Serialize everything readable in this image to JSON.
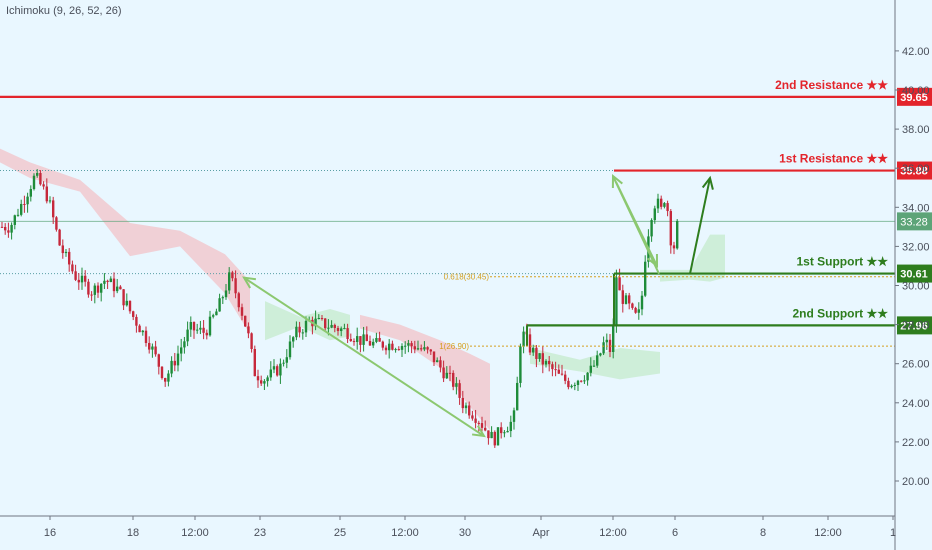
{
  "indicator_label": "Ichimoku (9, 26, 52, 26)",
  "colors": {
    "background": "#e9f7ff",
    "resistance": "#e3242b",
    "support": "#2e7d1e",
    "bull": "#1e8c3a",
    "bear": "#c6283b",
    "arrow_light": "#8cc870",
    "cloud_red": "#f1c9cf",
    "cloud_green": "#c9ecd2",
    "current_price": "#5da478",
    "fib": "#d4a020"
  },
  "chart_data": {
    "type": "candlestick",
    "ylim": [
      18.3,
      44.0
    ],
    "y_ticks": [
      "42.00",
      "40.00",
      "38.00",
      "36.00",
      "34.00",
      "32.00",
      "30.00",
      "28.00",
      "26.00",
      "24.00",
      "22.00",
      "20.00"
    ],
    "x_ticks": [
      "16",
      "18",
      "12:00",
      "23",
      "25",
      "12:00",
      "30",
      "Apr",
      "12:00",
      "6",
      "8",
      "12:00",
      "1"
    ],
    "levels": [
      {
        "label": "2nd Resistance ★★",
        "value": 39.65,
        "tag": "39.65",
        "kind": "resistance"
      },
      {
        "label": "1st Resistance ★★",
        "value": 35.88,
        "tag": "35.88",
        "kind": "resistance"
      },
      {
        "label": "1st Support ★★",
        "value": 30.61,
        "tag": "30.61",
        "kind": "support"
      },
      {
        "label": "2nd Support ★★",
        "value": 27.96,
        "tag": "27.96",
        "kind": "support"
      }
    ],
    "current_price": {
      "value": 33.28,
      "tag": "33.28"
    },
    "fibonacci": [
      {
        "label": "0.618(30.45)",
        "value": 30.45
      },
      {
        "label": "1(26.90)",
        "value": 26.9
      }
    ],
    "price_path": [
      [
        0,
        33.0
      ],
      [
        10,
        33.0
      ],
      [
        20,
        34.0
      ],
      [
        35,
        35.6
      ],
      [
        48,
        34.5
      ],
      [
        60,
        32.0
      ],
      [
        75,
        30.5
      ],
      [
        92,
        29.7
      ],
      [
        105,
        30.3
      ],
      [
        118,
        29.8
      ],
      [
        132,
        28.5
      ],
      [
        150,
        27.0
      ],
      [
        165,
        25.2
      ],
      [
        175,
        26.2
      ],
      [
        190,
        27.8
      ],
      [
        205,
        27.6
      ],
      [
        218,
        28.8
      ],
      [
        230,
        30.5
      ],
      [
        240,
        29.0
      ],
      [
        248,
        27.5
      ],
      [
        255,
        25.5
      ],
      [
        265,
        25.2
      ],
      [
        280,
        25.8
      ],
      [
        295,
        27.5
      ],
      [
        310,
        28.2
      ],
      [
        325,
        28.0
      ],
      [
        345,
        27.7
      ],
      [
        360,
        27.2
      ],
      [
        375,
        27.0
      ],
      [
        395,
        27.0
      ],
      [
        415,
        26.9
      ],
      [
        430,
        26.5
      ],
      [
        445,
        25.5
      ],
      [
        455,
        24.9
      ],
      [
        462,
        24.0
      ],
      [
        470,
        23.6
      ],
      [
        478,
        23.2
      ],
      [
        486,
        22.6
      ],
      [
        494,
        22.1
      ],
      [
        502,
        22.7
      ],
      [
        510,
        22.9
      ],
      [
        516,
        23.5
      ],
      [
        519,
        27.0
      ],
      [
        524,
        27.5
      ],
      [
        530,
        26.8
      ],
      [
        540,
        26.2
      ],
      [
        550,
        25.8
      ],
      [
        560,
        25.3
      ],
      [
        570,
        25.0
      ],
      [
        580,
        25.3
      ],
      [
        590,
        25.6
      ],
      [
        598,
        26.2
      ],
      [
        605,
        27.2
      ],
      [
        612,
        26.5
      ],
      [
        616,
        30.6
      ],
      [
        620,
        29.5
      ],
      [
        627,
        29.1
      ],
      [
        633,
        28.5
      ],
      [
        638,
        28.3
      ],
      [
        642,
        29.5
      ],
      [
        646,
        32.0
      ],
      [
        651,
        33.6
      ],
      [
        656,
        34.4
      ],
      [
        661,
        33.8
      ],
      [
        666,
        34.8
      ],
      [
        670,
        32.5
      ],
      [
        674,
        32.0
      ],
      [
        678,
        33.3
      ]
    ],
    "arrows": [
      {
        "from": [
          244,
          30.4
        ],
        "to": [
          484,
          22.3
        ]
      },
      {
        "from": [
          659,
          30.6
        ],
        "to": [
          613,
          35.6
        ]
      },
      {
        "from": [
          616,
          35.3
        ],
        "to": [
          657,
          31.0
        ]
      },
      {
        "from": [
          690,
          30.6
        ],
        "to": [
          710,
          35.5
        ]
      }
    ],
    "cloud_segments": [
      {
        "color": "red",
        "top": [
          [
            0,
            37.0
          ],
          [
            30,
            36.3
          ],
          [
            80,
            35.4
          ],
          [
            130,
            33.2
          ],
          [
            180,
            32.8
          ],
          [
            225,
            31.6
          ],
          [
            250,
            30.2
          ]
        ],
        "bottom": [
          [
            0,
            36.3
          ],
          [
            30,
            35.5
          ],
          [
            80,
            34.8
          ],
          [
            130,
            31.5
          ],
          [
            180,
            32.0
          ],
          [
            225,
            29.6
          ],
          [
            250,
            27.5
          ]
        ]
      },
      {
        "color": "green",
        "top": [
          [
            265,
            29.2
          ],
          [
            300,
            28.4
          ],
          [
            330,
            28.8
          ],
          [
            350,
            28.5
          ]
        ],
        "bottom": [
          [
            265,
            27.2
          ],
          [
            300,
            27.9
          ],
          [
            330,
            27.2
          ],
          [
            350,
            27.4
          ]
        ]
      },
      {
        "color": "red",
        "top": [
          [
            360,
            28.5
          ],
          [
            400,
            28.0
          ],
          [
            440,
            27.2
          ],
          [
            470,
            26.5
          ],
          [
            490,
            26.0
          ]
        ],
        "bottom": [
          [
            360,
            27.8
          ],
          [
            400,
            27.2
          ],
          [
            440,
            25.8
          ],
          [
            470,
            23.8
          ],
          [
            490,
            22.6
          ]
        ]
      },
      {
        "color": "green",
        "top": [
          [
            530,
            26.8
          ],
          [
            580,
            26.2
          ],
          [
            620,
            26.8
          ],
          [
            660,
            26.6
          ]
        ],
        "bottom": [
          [
            530,
            26.0
          ],
          [
            580,
            25.6
          ],
          [
            620,
            25.2
          ],
          [
            660,
            25.5
          ]
        ]
      },
      {
        "color": "green",
        "top": [
          [
            660,
            30.8
          ],
          [
            690,
            30.8
          ],
          [
            710,
            32.6
          ],
          [
            725,
            32.6
          ]
        ],
        "bottom": [
          [
            660,
            30.2
          ],
          [
            690,
            30.3
          ],
          [
            710,
            30.2
          ],
          [
            725,
            30.4
          ]
        ]
      }
    ]
  }
}
